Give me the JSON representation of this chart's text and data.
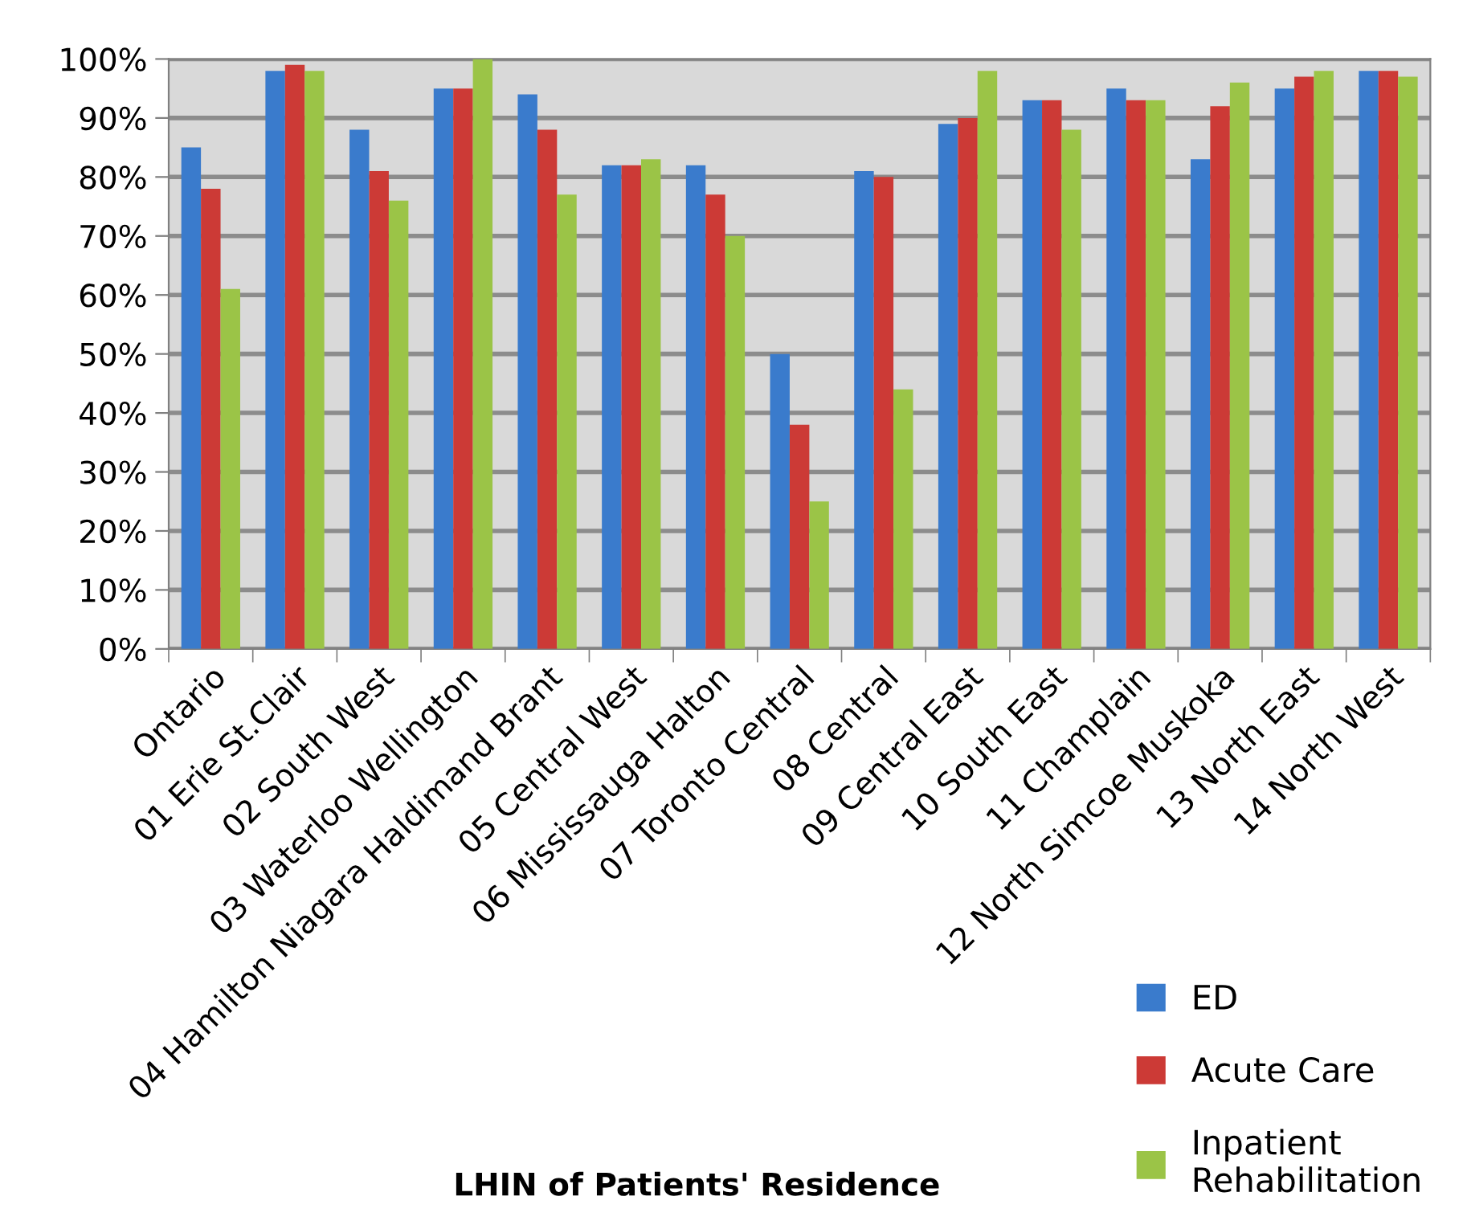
{
  "chart_data": {
    "type": "bar",
    "xlabel": "LHIN of Patients' Residence",
    "categories": [
      "Ontario",
      "01 Erie St.Clair",
      "02 South West",
      "03 Waterloo Wellington",
      "04 Hamilton Niagara Haldimand Brant",
      "05 Central West",
      "06 Mississauga Halton",
      "07 Toronto Central",
      "08 Central",
      "09 Central East",
      "10 South East",
      "11 Champlain",
      "12 North Simcoe Muskoka",
      "13 North East",
      "14 North West"
    ],
    "series": [
      {
        "name": "ED",
        "color": "#3a7bcc",
        "values": [
          85,
          98,
          88,
          95,
          94,
          82,
          82,
          50,
          81,
          89,
          93,
          95,
          83,
          95,
          98
        ]
      },
      {
        "name": "Acute Care",
        "color": "#cc3a36",
        "values": [
          78,
          99,
          81,
          95,
          88,
          82,
          77,
          38,
          80,
          90,
          93,
          93,
          92,
          97,
          98
        ]
      },
      {
        "name": "Inpatient Rehabilitation",
        "color": "#9bc447",
        "values": [
          61,
          98,
          76,
          100,
          77,
          83,
          70,
          25,
          44,
          98,
          88,
          93,
          96,
          98,
          97
        ]
      }
    ],
    "ylim": [
      0,
      100
    ],
    "yticks": [
      {
        "value": 0,
        "label": "0%"
      },
      {
        "value": 10,
        "label": "10%"
      },
      {
        "value": 20,
        "label": "20%"
      },
      {
        "value": 30,
        "label": "30%"
      },
      {
        "value": 40,
        "label": "40%"
      },
      {
        "value": 50,
        "label": "50%"
      },
      {
        "value": 60,
        "label": "60%"
      },
      {
        "value": 70,
        "label": "70%"
      },
      {
        "value": 80,
        "label": "80%"
      },
      {
        "value": 90,
        "label": "90%"
      },
      {
        "value": 100,
        "label": "100%"
      }
    ],
    "grid": "y",
    "legend": "bottom right"
  }
}
